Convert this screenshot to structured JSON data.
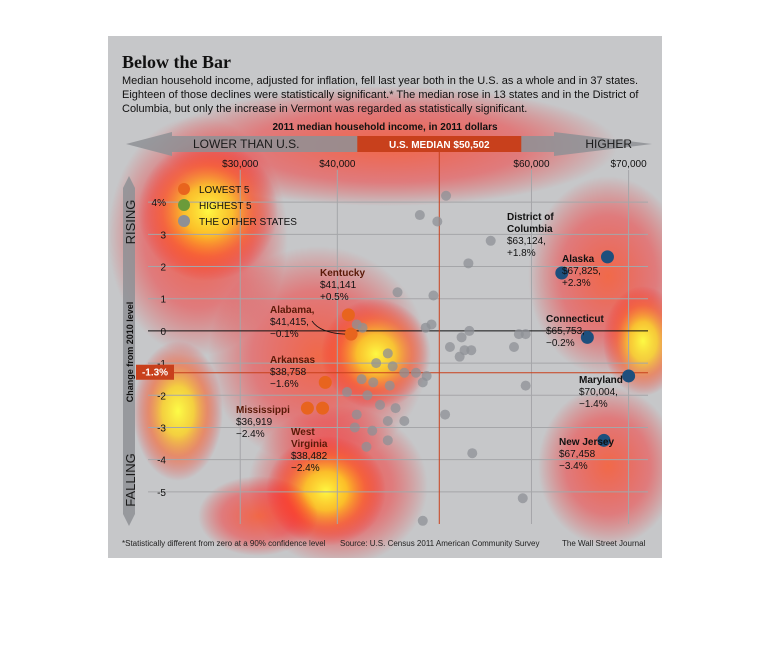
{
  "title": "Below the Bar",
  "subtitle": "Median household income, adjusted for inflation, fell last year both in the U.S. as a whole and in 37 states. Eighteen of those declines were statistically significant.* The median rose in 13 states and in the District of Columbia, but only the increase in Vermont was regarded as statistically significant.",
  "footnote": "*Statistically different from zero at a 90% confidence level",
  "source": "Source: U.S. Census 2011 American Community Survey",
  "credit": "The Wall Street Journal",
  "colors": {
    "lowest": "#e8641e",
    "highest": "#1d4f7d",
    "other": "#8e9095",
    "median_bar": "#c8401c"
  },
  "chart_data": {
    "type": "scatter",
    "xlabel": "2011 median household income, in 2011 dollars",
    "ylabel": "Change from 2010 level",
    "x_tick_labels": [
      "$30,000",
      "$40,000",
      "$60,000",
      "$70,000"
    ],
    "x_ticks": [
      30000,
      40000,
      60000,
      70000
    ],
    "y_tick_labels": [
      "4%",
      "3",
      "2",
      "1",
      "0",
      "-1",
      "-2",
      "-3",
      "-4",
      "-5"
    ],
    "y_ticks": [
      4,
      3,
      2,
      1,
      0,
      -1,
      -2,
      -3,
      -4,
      -5
    ],
    "xlim": [
      20500,
      72000
    ],
    "ylim": [
      -6,
      5
    ],
    "banner_left": "LOWER THAN U.S.",
    "banner_right": "HIGHER",
    "median_label": "U.S. MEDIAN  $50,502",
    "median_x": 50502,
    "us_change": -1.3,
    "us_change_label": "-1.3%",
    "side_top": "RISING",
    "side_bottom": "FALLING",
    "legend": [
      {
        "group": "lowest",
        "label": "LOWEST 5"
      },
      {
        "group": "highest",
        "label": "HIGHEST 5"
      },
      {
        "group": "other",
        "label": "THE OTHER STATES"
      }
    ],
    "series": [
      {
        "group": "lowest",
        "points": [
          {
            "name": "Kentucky",
            "income": "$41,141",
            "change": "+0.5%",
            "x": 41141,
            "y": 0.5
          },
          {
            "name": "Alabama,",
            "income": "$41,415,",
            "change": "−0.1%",
            "x": 41415,
            "y": -0.1
          },
          {
            "name": "Arkansas",
            "income": "$38,758",
            "change": "−1.6%",
            "x": 38758,
            "y": -1.6
          },
          {
            "name": "Mississippi",
            "income": "$36,919",
            "change": "−2.4%",
            "x": 36919,
            "y": -2.4
          },
          {
            "name": "West Virginia",
            "income": "$38,482",
            "change": "−2.4%",
            "x": 38482,
            "y": -2.4
          }
        ]
      },
      {
        "group": "highest",
        "points": [
          {
            "name": "District of Columbia",
            "income": "$63,124,",
            "change": "+1.8%",
            "x": 63124,
            "y": 1.8
          },
          {
            "name": "Alaska",
            "income": "$67,825,",
            "change": "+2.3%",
            "x": 67825,
            "y": 2.3
          },
          {
            "name": "Connecticut",
            "income": "$65,753,",
            "change": "−0.2%",
            "x": 65753,
            "y": -0.2
          },
          {
            "name": "Maryland",
            "income": "$70,004,",
            "change": "−1.4%",
            "x": 70004,
            "y": -1.4
          },
          {
            "name": "New Jersey",
            "income": "$67,458",
            "change": "−3.4%",
            "x": 67458,
            "y": -3.4
          }
        ]
      },
      {
        "group": "other",
        "points": [
          {
            "x": 51200,
            "y": 4.2
          },
          {
            "x": 48500,
            "y": 3.6
          },
          {
            "x": 50300,
            "y": 3.4
          },
          {
            "x": 55800,
            "y": 2.8
          },
          {
            "x": 53500,
            "y": 2.1
          },
          {
            "x": 46200,
            "y": 1.2
          },
          {
            "x": 49900,
            "y": 1.1
          },
          {
            "x": 42000,
            "y": 0.2
          },
          {
            "x": 42600,
            "y": 0.1
          },
          {
            "x": 49100,
            "y": 0.1
          },
          {
            "x": 49700,
            "y": 0.2
          },
          {
            "x": 53600,
            "y": 0.0
          },
          {
            "x": 52800,
            "y": -0.2
          },
          {
            "x": 58700,
            "y": -0.1
          },
          {
            "x": 59400,
            "y": -0.1
          },
          {
            "x": 51600,
            "y": -0.5
          },
          {
            "x": 53100,
            "y": -0.6
          },
          {
            "x": 53800,
            "y": -0.6
          },
          {
            "x": 52600,
            "y": -0.8
          },
          {
            "x": 58200,
            "y": -0.5
          },
          {
            "x": 45200,
            "y": -0.7
          },
          {
            "x": 44000,
            "y": -1.0
          },
          {
            "x": 45700,
            "y": -1.1
          },
          {
            "x": 46900,
            "y": -1.3
          },
          {
            "x": 48100,
            "y": -1.3
          },
          {
            "x": 49200,
            "y": -1.4
          },
          {
            "x": 42500,
            "y": -1.5
          },
          {
            "x": 43700,
            "y": -1.6
          },
          {
            "x": 45400,
            "y": -1.7
          },
          {
            "x": 48800,
            "y": -1.6
          },
          {
            "x": 41000,
            "y": -1.9
          },
          {
            "x": 43100,
            "y": -2.0
          },
          {
            "x": 44400,
            "y": -2.3
          },
          {
            "x": 46000,
            "y": -2.4
          },
          {
            "x": 42000,
            "y": -2.6
          },
          {
            "x": 45200,
            "y": -2.8
          },
          {
            "x": 46900,
            "y": -2.8
          },
          {
            "x": 51100,
            "y": -2.6
          },
          {
            "x": 41800,
            "y": -3.0
          },
          {
            "x": 43600,
            "y": -3.1
          },
          {
            "x": 45200,
            "y": -3.4
          },
          {
            "x": 43000,
            "y": -3.6
          },
          {
            "x": 53900,
            "y": -3.8
          },
          {
            "x": 59400,
            "y": -1.7
          },
          {
            "x": 59100,
            "y": -5.2
          },
          {
            "x": 48800,
            "y": -5.9
          }
        ]
      }
    ]
  }
}
